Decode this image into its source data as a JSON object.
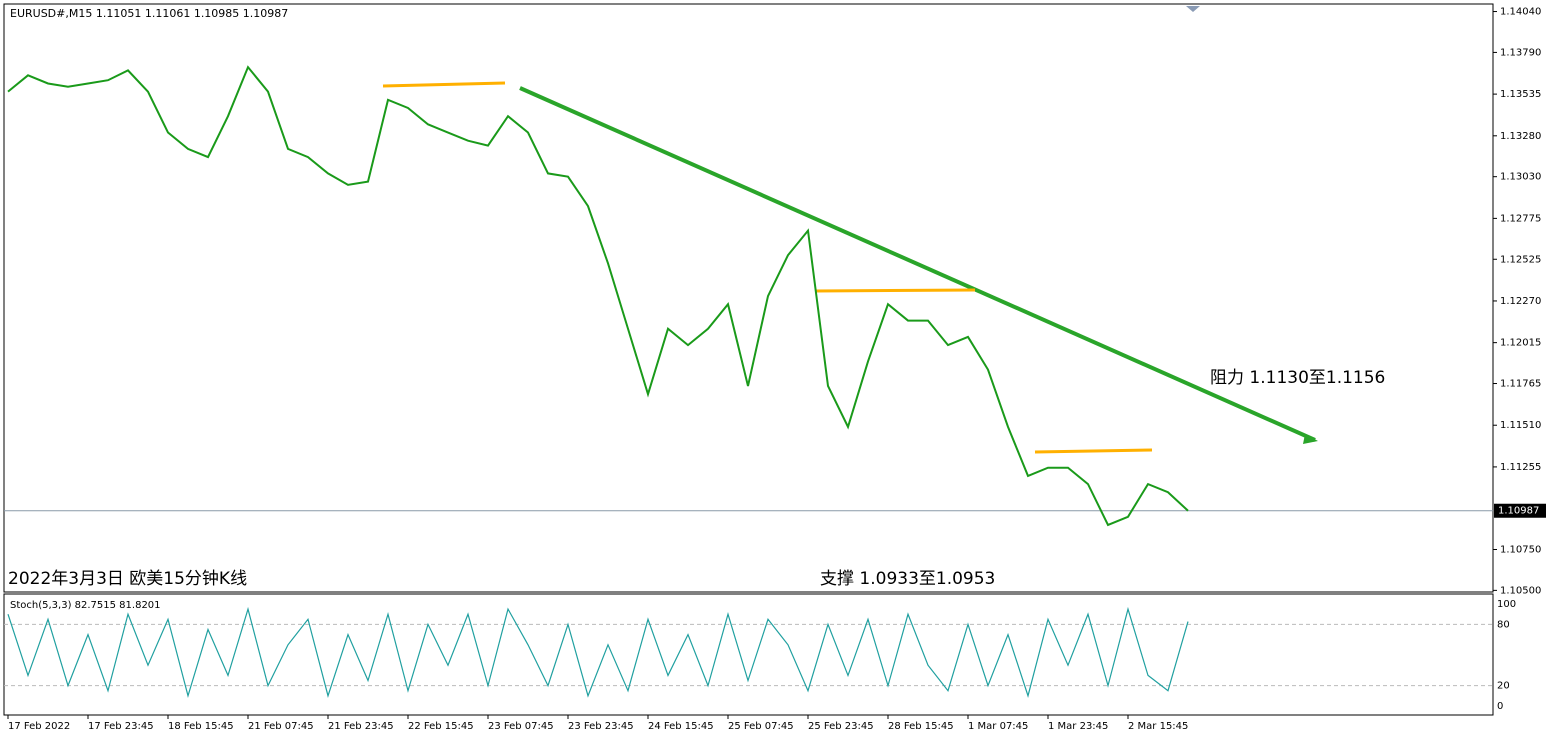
{
  "chart_data": {
    "type": "line",
    "header": "EURUSD#,M15  1.11051 1.11061 1.10985 1.10987",
    "caption": "2022年3月3日 欧美15分钟K线",
    "resistance_note": "阻力 1.1130至1.1156",
    "support_note": "支撑 1.0933至1.0953",
    "categories": [
      "17 Feb 2022",
      null,
      null,
      null,
      "17 Feb 23:45",
      null,
      null,
      null,
      "18 Feb 15:45",
      null,
      null,
      null,
      "21 Feb 07:45",
      null,
      null,
      null,
      "21 Feb 23:45",
      null,
      null,
      null,
      "22 Feb 15:45",
      null,
      null,
      null,
      "23 Feb 07:45",
      null,
      null,
      null,
      "23 Feb 23:45",
      null,
      null,
      null,
      "24 Feb 15:45",
      null,
      null,
      null,
      "25 Feb 07:45",
      null,
      null,
      null,
      "25 Feb 23:45",
      null,
      null,
      null,
      "28 Feb 15:45",
      null,
      null,
      null,
      "1 Mar 07:45",
      null,
      null,
      null,
      "1 Mar 23:45",
      null,
      null,
      null,
      "2 Mar 15:45",
      null,
      null,
      null
    ],
    "series": [
      {
        "name": "EURUSD#",
        "color": "#1a9a1a",
        "values": [
          1.1355,
          1.1365,
          1.136,
          1.1358,
          1.136,
          1.1362,
          1.1368,
          1.1355,
          1.133,
          1.132,
          1.1315,
          1.134,
          1.137,
          1.1355,
          1.132,
          1.1315,
          1.1305,
          1.1298,
          1.13,
          1.135,
          1.1345,
          1.1335,
          1.133,
          1.1325,
          1.1322,
          1.134,
          1.133,
          1.1305,
          1.1303,
          1.1285,
          1.125,
          1.121,
          1.117,
          1.121,
          1.12,
          1.121,
          1.1225,
          1.1175,
          1.123,
          1.1255,
          1.127,
          1.1175,
          1.115,
          1.119,
          1.1225,
          1.1215,
          1.1215,
          1.12,
          1.1205,
          1.1185,
          1.115,
          1.112,
          1.1125,
          1.1125,
          1.1115,
          1.109,
          1.1095,
          1.1115,
          1.111,
          1.10987
        ]
      }
    ],
    "last_price": 1.10987,
    "ylim": [
      1.1049,
      1.1408
    ],
    "yticks": [
      {
        "value": 1.1404,
        "label": "1.14040"
      },
      {
        "value": 1.1379,
        "label": "1.13790"
      },
      {
        "value": 1.13535,
        "label": "1.13535"
      },
      {
        "value": 1.1328,
        "label": "1.13280"
      },
      {
        "value": 1.1303,
        "label": "1.13030"
      },
      {
        "value": 1.12775,
        "label": "1.12775"
      },
      {
        "value": 1.12525,
        "label": "1.12525"
      },
      {
        "value": 1.1227,
        "label": "1.12270"
      },
      {
        "value": 1.12015,
        "label": "1.12015"
      },
      {
        "value": 1.11765,
        "label": "1.11765"
      },
      {
        "value": 1.1151,
        "label": "1.11510"
      },
      {
        "value": 1.11255,
        "label": "1.11255"
      },
      {
        "value": 1.1075,
        "label": "1.10750"
      },
      {
        "value": 1.105,
        "label": "1.10500"
      }
    ],
    "stoch": {
      "title": "Stoch(5,3,3) 82.7515 81.8201",
      "color": "#20a0a0",
      "values": [
        90,
        30,
        85,
        20,
        70,
        15,
        90,
        40,
        85,
        10,
        75,
        30,
        95,
        20,
        60,
        85,
        10,
        70,
        25,
        90,
        15,
        80,
        40,
        90,
        20,
        95,
        60,
        20,
        80,
        10,
        60,
        15,
        85,
        30,
        70,
        20,
        90,
        25,
        85,
        60,
        15,
        80,
        30,
        85,
        20,
        90,
        40,
        15,
        80,
        20,
        70,
        10,
        85,
        40,
        90,
        20,
        95,
        30,
        15,
        82.75
      ],
      "ylim": [
        -8.8,
        108.8
      ],
      "yticks": [
        100,
        80,
        20,
        0
      ]
    }
  }
}
